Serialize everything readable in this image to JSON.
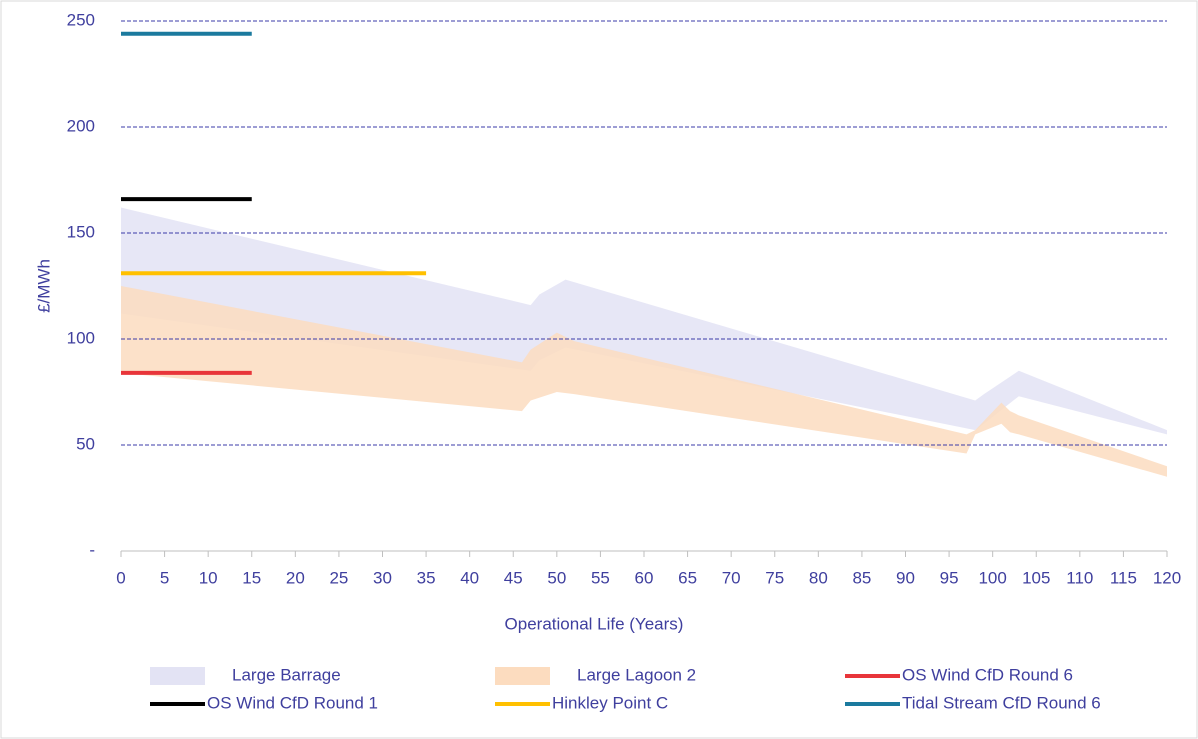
{
  "chart_data": {
    "type": "line",
    "x_label": "Operational Life (Years)",
    "y_label": "£/MWh",
    "xlim": [
      0,
      120
    ],
    "xticks": [
      0,
      5,
      10,
      15,
      20,
      25,
      30,
      35,
      40,
      45,
      50,
      55,
      60,
      65,
      70,
      75,
      80,
      85,
      90,
      95,
      100,
      105,
      110,
      115,
      120
    ],
    "ylim": [
      0,
      250
    ],
    "yticks": [
      {
        "value": 0,
        "label": "-"
      },
      50,
      100,
      150,
      200,
      250
    ],
    "grid": true,
    "series": [
      {
        "name": "Large Barrage",
        "kind": "band",
        "color": "#e3e3f4",
        "x": [
          0,
          47,
          48,
          51,
          98,
          99,
          103,
          120
        ],
        "high": [
          162,
          116,
          121,
          128,
          71,
          74,
          85,
          57
        ],
        "low": [
          112,
          85,
          90,
          96,
          57,
          60,
          73,
          55
        ]
      },
      {
        "name": "Large Lagoon 2",
        "kind": "band",
        "color": "#fcdcbf",
        "x": [
          0,
          46,
          47,
          50,
          52,
          97,
          98,
          101,
          102,
          103,
          120
        ],
        "high": [
          125,
          89,
          95,
          103,
          99,
          55,
          57,
          70,
          66,
          64,
          40
        ],
        "low": [
          84,
          66,
          71,
          75,
          74,
          46,
          55,
          60,
          56,
          55,
          35
        ]
      },
      {
        "name": "OS Wind CfD Round 6",
        "kind": "line",
        "color": "#e8353a",
        "x": [
          0,
          15
        ],
        "values": [
          84,
          84
        ]
      },
      {
        "name": "OS Wind CfD Round 1",
        "kind": "line",
        "color": "#000000",
        "x": [
          0,
          15
        ],
        "values": [
          166,
          166
        ]
      },
      {
        "name": "Hinkley Point C",
        "kind": "line",
        "color": "#ffc000",
        "x": [
          0,
          35
        ],
        "values": [
          131,
          131
        ]
      },
      {
        "name": "Tidal Stream CfD Round 6",
        "kind": "line",
        "color": "#1b7a9e",
        "x": [
          0,
          15
        ],
        "values": [
          244,
          244
        ]
      }
    ]
  }
}
